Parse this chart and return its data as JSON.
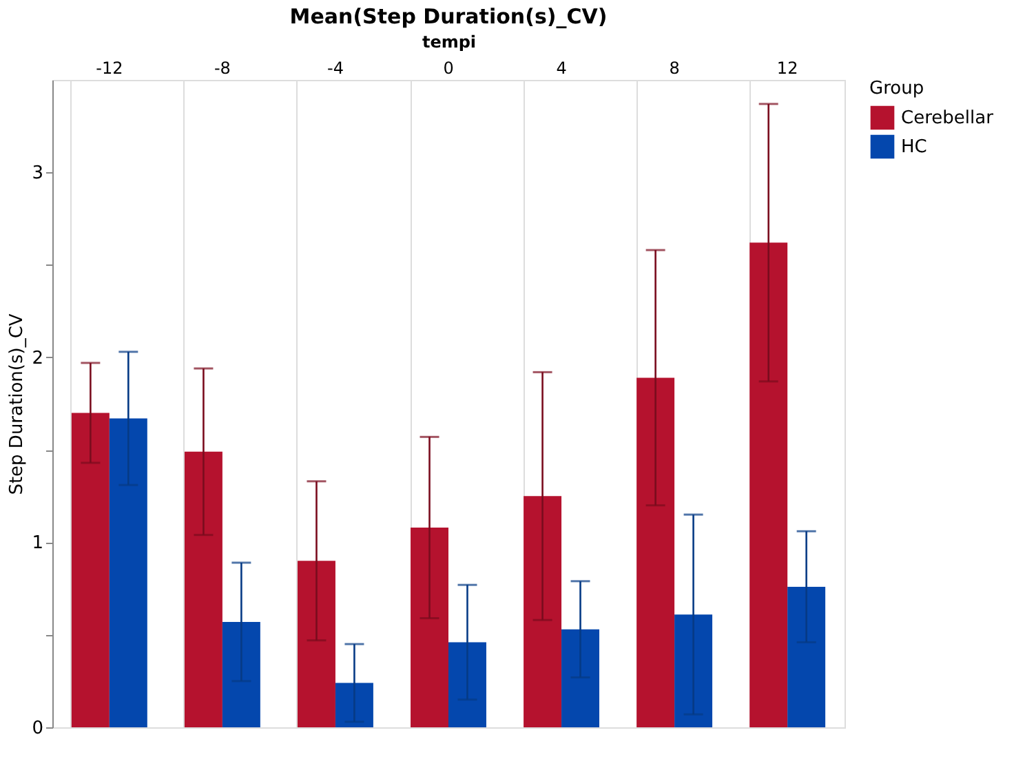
{
  "chart_data": {
    "type": "bar",
    "title": "Mean(Step Duration(s)_CV)",
    "xlabel": "tempi",
    "ylabel": "Step Duration(s)_CV",
    "legend_title": "Group",
    "categories": [
      "-12",
      "-8",
      "-4",
      "0",
      "4",
      "8",
      "12"
    ],
    "series": [
      {
        "name": "Cerebellar",
        "color": "#b5122e",
        "values": [
          1.7,
          1.49,
          0.9,
          1.08,
          1.25,
          1.89,
          2.62
        ],
        "errors": [
          0.27,
          0.45,
          0.43,
          0.49,
          0.67,
          0.69,
          0.75
        ]
      },
      {
        "name": "HC",
        "color": "#0447ad",
        "values": [
          1.67,
          0.57,
          0.24,
          0.46,
          0.53,
          0.61,
          0.76
        ],
        "errors": [
          0.36,
          0.32,
          0.21,
          0.31,
          0.26,
          0.54,
          0.3
        ]
      }
    ],
    "ylim": [
      0,
      3.5
    ],
    "yticks": [
      0,
      {
        "value": 0.5,
        "label": null
      },
      1,
      {
        "value": 1.5,
        "label": null
      },
      2,
      {
        "value": 2.5,
        "label": null
      },
      3
    ],
    "grid": "x",
    "legend": "top right"
  }
}
